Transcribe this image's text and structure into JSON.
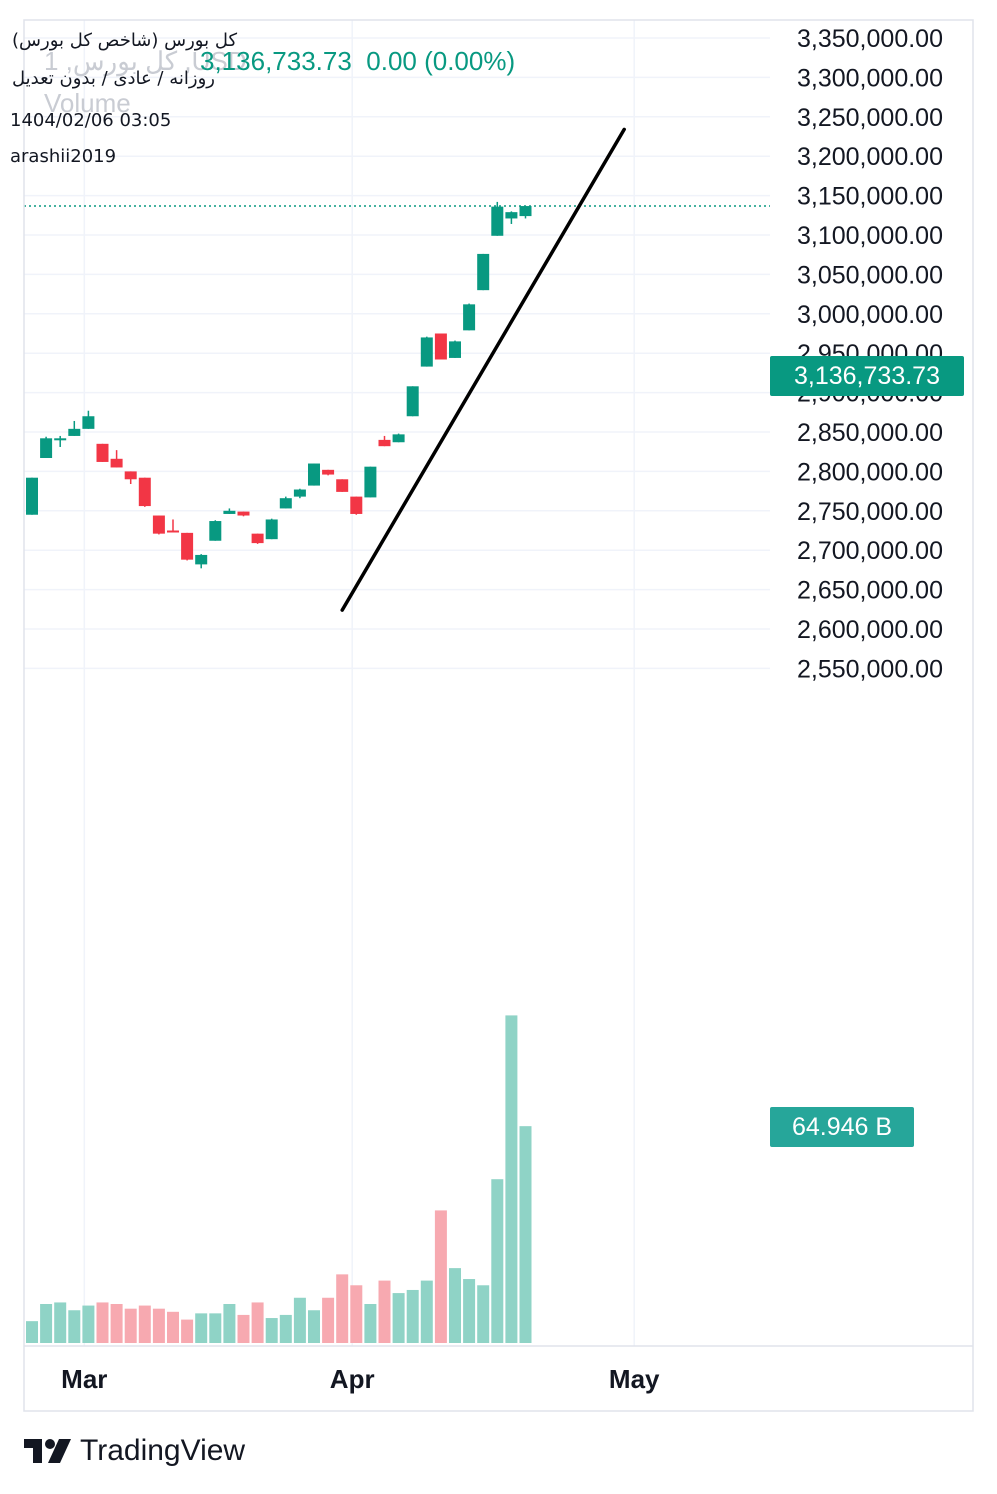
{
  "header": {
    "symbol_title": "کل بورس (شاخص کل بورس)",
    "chart_settings": "روزانه / عادی / بدون تعدیل",
    "datetime": "1404/02/06 03:05",
    "author": "arashii2019",
    "watermark_symbol": "1 ,کل بورس ,USD",
    "watermark_volume": "Volume",
    "last_price": "3,136,733.73",
    "change": "0.00 (0.00%)"
  },
  "labels": {
    "current_price": "3,136,733.73",
    "current_volume": "64.946 B"
  },
  "brand": {
    "name": "TradingView"
  },
  "colors": {
    "up": "#089981",
    "down": "#f23645",
    "up_volume": "#8fd3c6",
    "down_volume": "#f7a9b0",
    "price_tag": "#089981",
    "volume_tag": "#26a69a",
    "trendline": "#000000",
    "grid": "#f0f3fa"
  },
  "chart_data": {
    "type": "candlestick",
    "title": "کل بورس (شاخص کل بورس)",
    "ylim": [
      2520000,
      3360000
    ],
    "y_ticks": [
      2550000,
      2600000,
      2650000,
      2700000,
      2750000,
      2800000,
      2850000,
      2900000,
      2950000,
      3000000,
      3050000,
      3100000,
      3150000,
      3200000,
      3250000,
      3300000,
      3350000
    ],
    "y_tick_labels": [
      "2,550,000.00",
      "2,600,000.00",
      "2,650,000.00",
      "2,700,000.00",
      "2,750,000.00",
      "2,800,000.00",
      "2,850,000.00",
      "2,900,000.00",
      "2,950,000.00",
      "3,000,000.00",
      "3,050,000.00",
      "3,100,000.00",
      "3,150,000.00",
      "3,200,000.00",
      "3,250,000.00",
      "3,300,000.00",
      "3,350,000.00"
    ],
    "x_labels": [
      {
        "text": "Mar",
        "index": 3
      },
      {
        "text": "Apr",
        "index": 22
      },
      {
        "text": "May",
        "index": 42
      }
    ],
    "total_slots": 53,
    "last_price": 3136733.73,
    "candles": [
      {
        "o": 2745000,
        "h": 2792000,
        "l": 2745000,
        "c": 2792000
      },
      {
        "o": 2817000,
        "h": 2844000,
        "l": 2817000,
        "c": 2842000
      },
      {
        "o": 2840000,
        "h": 2845000,
        "l": 2831000,
        "c": 2842000
      },
      {
        "o": 2845000,
        "h": 2864000,
        "l": 2845000,
        "c": 2854000
      },
      {
        "o": 2854000,
        "h": 2877000,
        "l": 2854000,
        "c": 2870000
      },
      {
        "o": 2835000,
        "h": 2835000,
        "l": 2812000,
        "c": 2812000
      },
      {
        "o": 2816000,
        "h": 2827000,
        "l": 2805000,
        "c": 2805000
      },
      {
        "o": 2800000,
        "h": 2800000,
        "l": 2784000,
        "c": 2790000
      },
      {
        "o": 2792000,
        "h": 2792000,
        "l": 2755000,
        "c": 2756000
      },
      {
        "o": 2744000,
        "h": 2744000,
        "l": 2720000,
        "c": 2721000
      },
      {
        "o": 2725000,
        "h": 2739000,
        "l": 2723000,
        "c": 2723000
      },
      {
        "o": 2722000,
        "h": 2722000,
        "l": 2687000,
        "c": 2688000
      },
      {
        "o": 2682000,
        "h": 2695000,
        "l": 2677000,
        "c": 2694000
      },
      {
        "o": 2712000,
        "h": 2738000,
        "l": 2712000,
        "c": 2737000
      },
      {
        "o": 2746000,
        "h": 2753000,
        "l": 2746000,
        "c": 2750000
      },
      {
        "o": 2749000,
        "h": 2749000,
        "l": 2743000,
        "c": 2744000
      },
      {
        "o": 2721000,
        "h": 2721000,
        "l": 2708000,
        "c": 2709000
      },
      {
        "o": 2714000,
        "h": 2740000,
        "l": 2714000,
        "c": 2739000
      },
      {
        "o": 2753000,
        "h": 2768000,
        "l": 2753000,
        "c": 2766000
      },
      {
        "o": 2768000,
        "h": 2778000,
        "l": 2766000,
        "c": 2777000
      },
      {
        "o": 2782000,
        "h": 2810000,
        "l": 2782000,
        "c": 2810000
      },
      {
        "o": 2802000,
        "h": 2802000,
        "l": 2795000,
        "c": 2796000
      },
      {
        "o": 2790000,
        "h": 2790000,
        "l": 2774000,
        "c": 2774000
      },
      {
        "o": 2768000,
        "h": 2768000,
        "l": 2745000,
        "c": 2746000
      },
      {
        "o": 2767000,
        "h": 2806000,
        "l": 2767000,
        "c": 2806000
      },
      {
        "o": 2840000,
        "h": 2845000,
        "l": 2832000,
        "c": 2832000
      },
      {
        "o": 2837000,
        "h": 2848000,
        "l": 2837000,
        "c": 2847000
      },
      {
        "o": 2870000,
        "h": 2908000,
        "l": 2870000,
        "c": 2908000
      },
      {
        "o": 2933000,
        "h": 2971000,
        "l": 2933000,
        "c": 2970000
      },
      {
        "o": 2975000,
        "h": 2975000,
        "l": 2942000,
        "c": 2942000
      },
      {
        "o": 2944000,
        "h": 2966000,
        "l": 2944000,
        "c": 2965000
      },
      {
        "o": 2979000,
        "h": 3013000,
        "l": 2979000,
        "c": 3012000
      },
      {
        "o": 3030000,
        "h": 3076000,
        "l": 3030000,
        "c": 3076000
      },
      {
        "o": 3099000,
        "h": 3142000,
        "l": 3099000,
        "c": 3136000
      },
      {
        "o": 3121000,
        "h": 3130000,
        "l": 3114000,
        "c": 3129000
      },
      {
        "o": 3124000,
        "h": 3137000,
        "l": 3121000,
        "c": 3136733.73
      }
    ],
    "volume": {
      "unit": "relative",
      "current_label": "64.946 B",
      "values": [
        14,
        25,
        26,
        21,
        24,
        26,
        25,
        22,
        24,
        22,
        20,
        15,
        19,
        19,
        25,
        18,
        26,
        16,
        18,
        29,
        21,
        29,
        44,
        37,
        25,
        40,
        32,
        34,
        40,
        85,
        48,
        41,
        37,
        105,
        210,
        139
      ]
    },
    "trendline": {
      "x_start": 22.0,
      "y_start": 2624000,
      "x_end": 42.0,
      "y_end": 3234000
    }
  }
}
